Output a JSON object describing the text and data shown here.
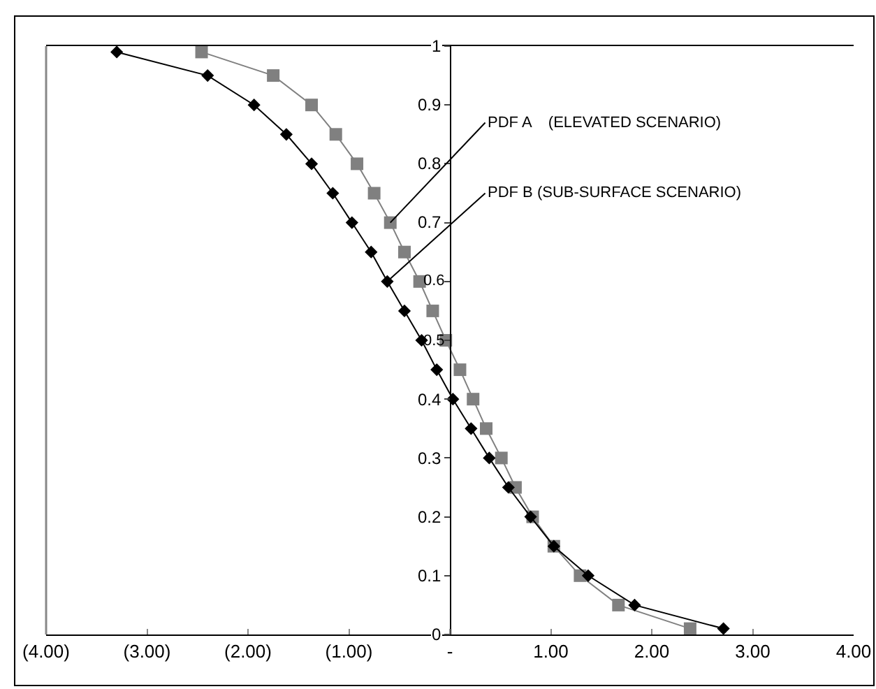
{
  "chart_data": {
    "type": "line",
    "grid": false,
    "legend": false,
    "xlim": [
      -4,
      4
    ],
    "xticks": [
      {
        "value": -4,
        "label": "(4.00)"
      },
      {
        "value": -3,
        "label": "(3.00)"
      },
      {
        "value": -2,
        "label": "(2.00)"
      },
      {
        "value": -1,
        "label": "(1.00)"
      },
      {
        "value": 0,
        "label": "-"
      },
      {
        "value": 1,
        "label": "1.00"
      },
      {
        "value": 2,
        "label": "2.00"
      },
      {
        "value": 3,
        "label": "3.00"
      },
      {
        "value": 4,
        "label": "4.00"
      }
    ],
    "ylim": [
      0,
      1
    ],
    "yticks": [
      0,
      0.1,
      0.2,
      0.3,
      0.4,
      0.5,
      0.6,
      0.7,
      0.8,
      0.9,
      1
    ],
    "series": [
      {
        "name": "PDF A    (ELEVATED SCENARIO)",
        "color": "#808080",
        "marker": "square",
        "x": [
          -2.46,
          -1.75,
          -1.37,
          -1.13,
          -0.92,
          -0.75,
          -0.59,
          -0.45,
          -0.3,
          -0.17,
          -0.04,
          0.1,
          0.23,
          0.36,
          0.51,
          0.65,
          0.82,
          1.03,
          1.29,
          1.67,
          2.38
        ],
        "values": [
          0.99,
          0.95,
          0.9,
          0.85,
          0.8,
          0.75,
          0.7,
          0.65,
          0.6,
          0.55,
          0.5,
          0.45,
          0.4,
          0.35,
          0.3,
          0.25,
          0.2,
          0.15,
          0.1,
          0.05,
          0.01
        ]
      },
      {
        "name": "PDF B (SUB-SURFACE SCENARIO)",
        "color": "#000000",
        "marker": "diamond",
        "x": [
          -3.3,
          -2.4,
          -1.94,
          -1.62,
          -1.37,
          -1.16,
          -0.97,
          -0.78,
          -0.62,
          -0.45,
          -0.28,
          -0.13,
          0.03,
          0.21,
          0.39,
          0.58,
          0.8,
          1.03,
          1.37,
          1.83,
          2.71
        ],
        "values": [
          0.99,
          0.95,
          0.9,
          0.85,
          0.8,
          0.75,
          0.7,
          0.65,
          0.6,
          0.55,
          0.5,
          0.45,
          0.4,
          0.35,
          0.3,
          0.25,
          0.2,
          0.15,
          0.1,
          0.05,
          0.01
        ]
      }
    ]
  }
}
